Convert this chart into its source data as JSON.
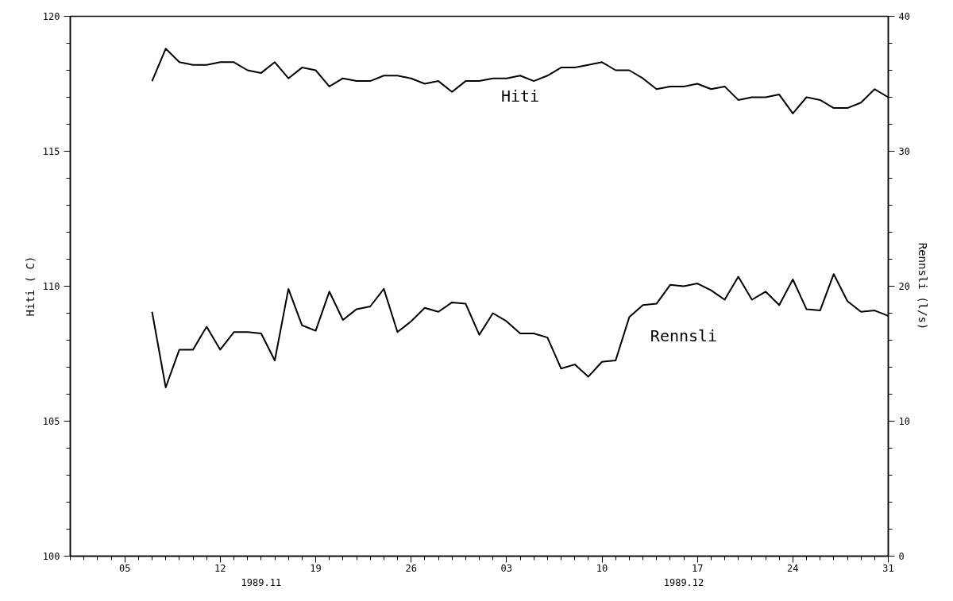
{
  "chart_data": {
    "type": "line",
    "xlabel": null,
    "ylabel": "Hiti ( C)",
    "y2label": "Rennsli (l/s)",
    "x": [
      "1989-11-07",
      "1989-11-08",
      "1989-11-09",
      "1989-11-10",
      "1989-11-11",
      "1989-11-12",
      "1989-11-13",
      "1989-11-14",
      "1989-11-15",
      "1989-11-16",
      "1989-11-17",
      "1989-11-18",
      "1989-11-19",
      "1989-11-20",
      "1989-11-21",
      "1989-11-22",
      "1989-11-23",
      "1989-11-24",
      "1989-11-25",
      "1989-11-26",
      "1989-11-27",
      "1989-11-28",
      "1989-11-29",
      "1989-11-30",
      "1989-12-01",
      "1989-12-02",
      "1989-12-03",
      "1989-12-04",
      "1989-12-05",
      "1989-12-06",
      "1989-12-07",
      "1989-12-08",
      "1989-12-09",
      "1989-12-10",
      "1989-12-11",
      "1989-12-12",
      "1989-12-13",
      "1989-12-14",
      "1989-12-15",
      "1989-12-16",
      "1989-12-17",
      "1989-12-18",
      "1989-12-19",
      "1989-12-20",
      "1989-12-21",
      "1989-12-22",
      "1989-12-23",
      "1989-12-24",
      "1989-12-25",
      "1989-12-26",
      "1989-12-27",
      "1989-12-28",
      "1989-12-29",
      "1989-12-30",
      "1989-12-31"
    ],
    "series": [
      {
        "name": "Hiti",
        "color": "#000000",
        "values": [
          117.6,
          118.8,
          118.3,
          118.2,
          118.2,
          118.3,
          118.3,
          118.0,
          117.9,
          118.3,
          117.7,
          118.1,
          118.0,
          117.4,
          117.7,
          117.6,
          117.6,
          117.8,
          117.8,
          117.7,
          117.5,
          117.6,
          117.2,
          117.6,
          117.6,
          117.7,
          117.7,
          117.8,
          117.6,
          117.8,
          118.1,
          118.1,
          118.2,
          118.3,
          118.0,
          118.0,
          117.7,
          117.3,
          117.4,
          117.4,
          117.5,
          117.3,
          117.4,
          116.9,
          117.0,
          117.0,
          117.1,
          116.4,
          117.0,
          116.9,
          116.6,
          116.6,
          116.8,
          117.3,
          117.0
        ]
      },
      {
        "name": "Rennsli",
        "color": "#000000",
        "axis": "y2",
        "values": [
          18.1,
          12.5,
          15.3,
          15.3,
          17.0,
          15.3,
          16.6,
          16.6,
          16.5,
          14.5,
          19.8,
          17.1,
          16.7,
          19.6,
          17.5,
          18.3,
          18.5,
          19.8,
          16.6,
          17.4,
          18.4,
          18.1,
          18.8,
          18.7,
          16.4,
          18.0,
          17.4,
          16.5,
          16.5,
          16.2,
          13.9,
          14.2,
          13.3,
          14.4,
          14.5,
          17.7,
          18.6,
          18.7,
          20.1,
          20.0,
          20.2,
          19.7,
          19.0,
          20.7,
          19.0,
          19.6,
          18.6,
          20.5,
          18.3,
          18.2,
          20.9,
          18.9,
          18.1,
          18.2,
          17.8
        ]
      }
    ],
    "xlim": [
      "1989-11-01",
      "1989-12-31"
    ],
    "xticks": [
      {
        "value": "1989-11-05",
        "label": "05"
      },
      {
        "value": "1989-11-12",
        "label": "12"
      },
      {
        "value": "1989-11-19",
        "label": "19"
      },
      {
        "value": "1989-11-26",
        "label": "26"
      },
      {
        "value": "1989-12-03",
        "label": "03"
      },
      {
        "value": "1989-12-10",
        "label": "10"
      },
      {
        "value": "1989-12-17",
        "label": "17"
      },
      {
        "value": "1989-12-24",
        "label": "24"
      },
      {
        "value": "1989-12-31",
        "label": "31"
      }
    ],
    "x2lim": [
      "1989-11-01",
      "1989-12-31"
    ],
    "x2ticks": [
      {
        "value": "1989-11-15",
        "label": "1989.11"
      },
      {
        "value": "1989-12-16",
        "label": "1989.12"
      }
    ],
    "ylim": [
      100,
      120
    ],
    "yticks": [
      100,
      105,
      110,
      115,
      120
    ],
    "y2lim": [
      0,
      40
    ],
    "y2ticks": [
      0,
      10,
      20,
      30,
      40
    ],
    "grid": false,
    "marker": "none",
    "line_style": "solid"
  }
}
